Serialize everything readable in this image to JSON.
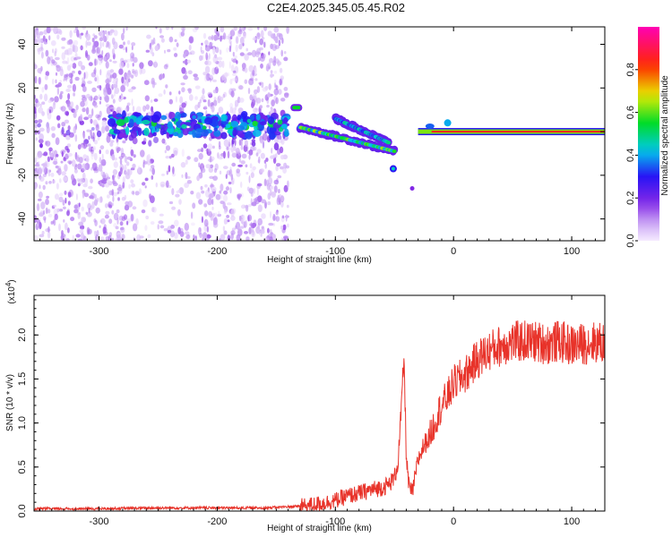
{
  "title": "C2E4.2025.345.05.45.R02",
  "chart_data": [
    {
      "type": "heatmap",
      "xlabel": "Height of straight line (km)",
      "ylabel": "Frequency (Hz)",
      "xlim": [
        -355,
        128
      ],
      "ylim": [
        -50,
        48
      ],
      "xticks": [
        -300,
        -200,
        -100,
        0,
        100
      ],
      "yticks": [
        -40,
        -20,
        0,
        20,
        40
      ],
      "colorbar": {
        "label": "Normalized spectral amplitude",
        "range": [
          0,
          1
        ],
        "ticks": [
          "0.0",
          "0.2",
          "0.4",
          "0.6",
          "0.8"
        ],
        "tick_values": [
          0,
          0.2,
          0.4,
          0.6,
          0.8
        ]
      },
      "features": [
        {
          "name": "noise-band",
          "x": [
            -355,
            -140
          ],
          "freq_range": [
            -50,
            48
          ],
          "amplitude": 0.08
        },
        {
          "name": "main-trace",
          "x": [
            -290,
            -140
          ],
          "freq": 3,
          "amplitude": 0.3
        },
        {
          "name": "upper-echo",
          "x": [
            -138,
            -128
          ],
          "freq": 11,
          "amplitude": 0.55
        },
        {
          "name": "descending-track",
          "x": [
            -130,
            -50
          ],
          "freq_start": 2,
          "freq_end": -9,
          "amplitude": 0.6
        },
        {
          "name": "secondary-track",
          "x": [
            -100,
            -55
          ],
          "freq_start": 6,
          "freq_end": -5,
          "amplitude": 0.45
        },
        {
          "name": "steady-line",
          "x": [
            -30,
            128
          ],
          "freq": 0,
          "amplitude": 1.0
        }
      ]
    },
    {
      "type": "line",
      "xlabel": "Height of straight line (km)",
      "ylabel": "SNR (10 * v/v)",
      "scale_label": "(x10",
      "scale_exp": "4",
      "scale_close": ")",
      "xlim": [
        -355,
        128
      ],
      "ylim": [
        0,
        2.45
      ],
      "xticks": [
        -300,
        -200,
        -100,
        0,
        100
      ],
      "yticks": [
        0.0,
        0.5,
        1.0,
        1.5,
        2.0
      ],
      "ytick_labels": [
        "0.0",
        "0.5",
        "1.0",
        "1.5",
        "2.0"
      ],
      "series": [
        {
          "name": "SNR",
          "color": "#e8332a",
          "x": [
            -355,
            -300,
            -250,
            -200,
            -160,
            -130,
            -110,
            -100,
            -90,
            -80,
            -70,
            -60,
            -55,
            -50,
            -47,
            -44,
            -42,
            -40,
            -38,
            -35,
            -30,
            -25,
            -20,
            -15,
            -10,
            -5,
            0,
            10,
            20,
            30,
            40,
            50,
            60,
            70,
            80,
            90,
            100,
            110,
            120,
            128
          ],
          "y": [
            0.02,
            0.02,
            0.03,
            0.03,
            0.03,
            0.05,
            0.09,
            0.12,
            0.17,
            0.2,
            0.24,
            0.27,
            0.3,
            0.38,
            0.55,
            1.2,
            1.75,
            0.65,
            0.3,
            0.2,
            0.58,
            0.75,
            0.85,
            1.05,
            1.2,
            1.3,
            1.45,
            1.55,
            1.72,
            1.82,
            1.88,
            1.92,
            1.93,
            1.92,
            1.9,
            1.93,
            1.88,
            1.9,
            1.92,
            1.9
          ]
        }
      ]
    }
  ]
}
